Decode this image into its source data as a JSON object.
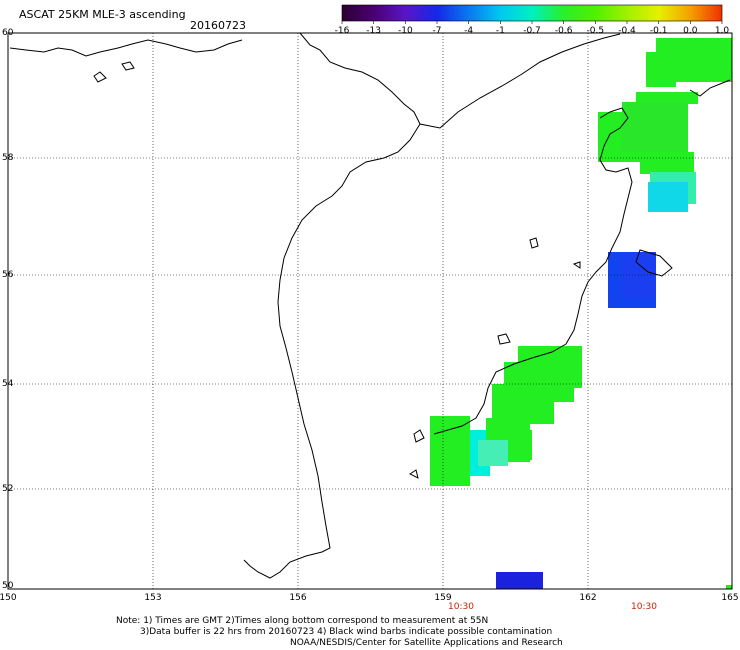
{
  "header": {
    "title": "ASCAT 25KM MLE-3 ascending",
    "date": "20160723"
  },
  "colorbar": {
    "tick_labels": [
      "-16",
      "-13",
      "-10",
      "-7",
      "-4",
      "-1",
      "-0.7",
      "-0.6",
      "-0.5",
      "-0.4",
      "-0.1",
      "0.0",
      "1.0"
    ],
    "colors": [
      "#2a0030",
      "#4b0070",
      "#5a14c8",
      "#1428e6",
      "#0a78f0",
      "#00c8f0",
      "#00f0c0",
      "#28f028",
      "#50f000",
      "#a0f000",
      "#e6f000",
      "#f5a000",
      "#f03000"
    ]
  },
  "axes": {
    "lat_labels": [
      "60",
      "58",
      "56",
      "54",
      "52",
      "50"
    ],
    "lon_labels": [
      "150",
      "153",
      "156",
      "159",
      "162",
      "165"
    ],
    "time_labels": [
      "10:30",
      "10:30"
    ]
  },
  "notes": {
    "line1": "Note: 1) Times are GMT 2)Times along bottom correspond to measurement at 55N",
    "line2": "3)Data buffer is 22 hrs from 20160723 4) Black wind barbs indicate possible contamination",
    "line3": "NOAA/NESDIS/Center for Satellite Applications and Research"
  },
  "swath_colors": {
    "green": "#22ee22",
    "cyan": "#00eedd",
    "blue": "#1144ee",
    "deep_blue": "#1a22dd"
  }
}
